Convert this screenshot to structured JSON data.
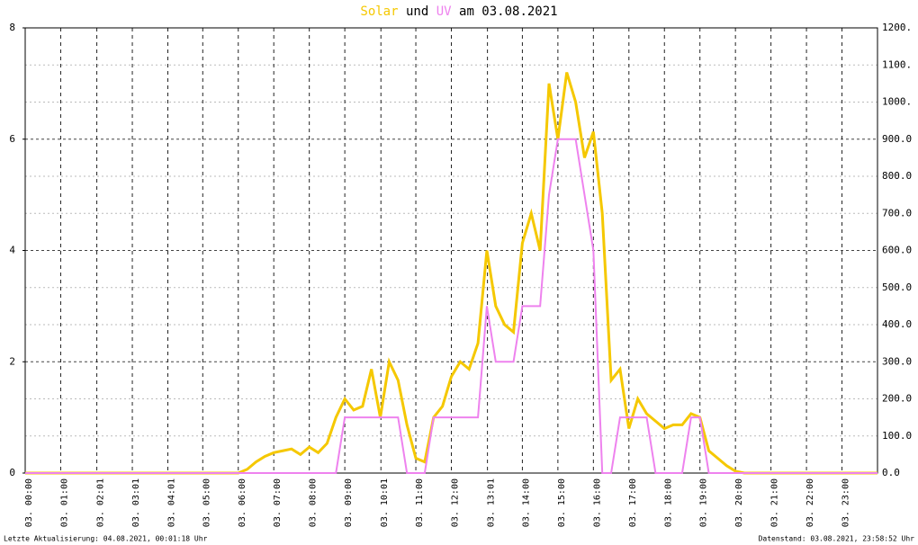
{
  "chart_data": {
    "type": "line",
    "title_connector": "und",
    "title_suffix": "am 03.08.2021",
    "footer_left": "Letzte Aktualisierung: 04.08.2021, 00:01:18 Uhr",
    "footer_right": "Datenstand: 03.08.2021, 23:58:52 Uhr",
    "xlim": [
      0,
      24
    ],
    "xticks": [
      {
        "value": 0,
        "label": "03. 00:00"
      },
      {
        "value": 1,
        "label": "03. 01:00"
      },
      {
        "value": 2.0167,
        "label": "03. 02:01"
      },
      {
        "value": 3.0167,
        "label": "03. 03:01"
      },
      {
        "value": 4.0167,
        "label": "03. 04:01"
      },
      {
        "value": 5,
        "label": "03. 05:00"
      },
      {
        "value": 6,
        "label": "03. 06:00"
      },
      {
        "value": 7,
        "label": "03. 07:00"
      },
      {
        "value": 8,
        "label": "03. 08:00"
      },
      {
        "value": 9,
        "label": "03. 09:00"
      },
      {
        "value": 10.0167,
        "label": "03. 10:01"
      },
      {
        "value": 11,
        "label": "03. 11:00"
      },
      {
        "value": 12,
        "label": "03. 12:00"
      },
      {
        "value": 13.0167,
        "label": "03. 13:01"
      },
      {
        "value": 14,
        "label": "03. 14:00"
      },
      {
        "value": 15,
        "label": "03. 15:00"
      },
      {
        "value": 16,
        "label": "03. 16:00"
      },
      {
        "value": 17,
        "label": "03. 17:00"
      },
      {
        "value": 18,
        "label": "03. 18:00"
      },
      {
        "value": 19,
        "label": "03. 19:00"
      },
      {
        "value": 20,
        "label": "03. 20:00"
      },
      {
        "value": 21,
        "label": "03. 21:00"
      },
      {
        "value": 22,
        "label": "03. 22:00"
      },
      {
        "value": 23,
        "label": "03. 23:00"
      }
    ],
    "ylim": [
      0,
      8
    ],
    "yticks": [
      0,
      2,
      4,
      6,
      8
    ],
    "y2lim": [
      0,
      1200
    ],
    "y2ticks": [
      {
        "value": 0,
        "label": "0.0"
      },
      {
        "value": 100,
        "label": "100.0"
      },
      {
        "value": 200,
        "label": "200.0"
      },
      {
        "value": 300,
        "label": "300.0"
      },
      {
        "value": 400,
        "label": "400.0"
      },
      {
        "value": 500,
        "label": "500.0"
      },
      {
        "value": 600,
        "label": "600.0"
      },
      {
        "value": 700,
        "label": "700.0"
      },
      {
        "value": 800,
        "label": "800.0"
      },
      {
        "value": 900,
        "label": "900.0"
      },
      {
        "value": 1000,
        "label": "1000."
      },
      {
        "value": 1100,
        "label": "1100."
      },
      {
        "value": 1200,
        "label": "1200."
      }
    ],
    "grid": true,
    "x": [
      0,
      6,
      6.25,
      6.5,
      6.75,
      7,
      7.25,
      7.5,
      7.75,
      8,
      8.25,
      8.5,
      8.75,
      9,
      9.25,
      9.5,
      9.75,
      10,
      10.25,
      10.5,
      10.75,
      11,
      11.25,
      11.5,
      11.75,
      12,
      12.25,
      12.5,
      12.75,
      13,
      13.25,
      13.5,
      13.75,
      14,
      14.25,
      14.5,
      14.75,
      15,
      15.25,
      15.5,
      15.75,
      16,
      16.25,
      16.5,
      16.75,
      17,
      17.25,
      17.5,
      17.75,
      18,
      18.25,
      18.5,
      18.75,
      19,
      19.25,
      19.5,
      19.75,
      20,
      20.25,
      24
    ],
    "series": [
      {
        "name": "Solar",
        "color": "#f5c800",
        "axis": "y2",
        "values": [
          0,
          0,
          10,
          30,
          45,
          55,
          60,
          65,
          50,
          70,
          55,
          80,
          150,
          200,
          170,
          180,
          280,
          150,
          300,
          250,
          130,
          40,
          30,
          150,
          180,
          260,
          300,
          280,
          350,
          600,
          450,
          400,
          380,
          620,
          700,
          600,
          1050,
          900,
          1080,
          1000,
          850,
          920,
          700,
          250,
          280,
          120,
          200,
          160,
          140,
          120,
          130,
          130,
          160,
          150,
          60,
          40,
          20,
          5,
          0,
          0
        ]
      },
      {
        "name": "UV",
        "color": "#ee82ee",
        "values": [
          0,
          0,
          0,
          0,
          0,
          0,
          0,
          0,
          0,
          0,
          0,
          0,
          0,
          1,
          1,
          1,
          1,
          1,
          1,
          1,
          0,
          0,
          0,
          1,
          1,
          1,
          1,
          1,
          1,
          3,
          2,
          2,
          2,
          3,
          3,
          3,
          5,
          6,
          6,
          6,
          5,
          4,
          0,
          0,
          1,
          1,
          1,
          1,
          0,
          0,
          0,
          0,
          1,
          1,
          0,
          0,
          0,
          0,
          0,
          0
        ]
      }
    ]
  }
}
